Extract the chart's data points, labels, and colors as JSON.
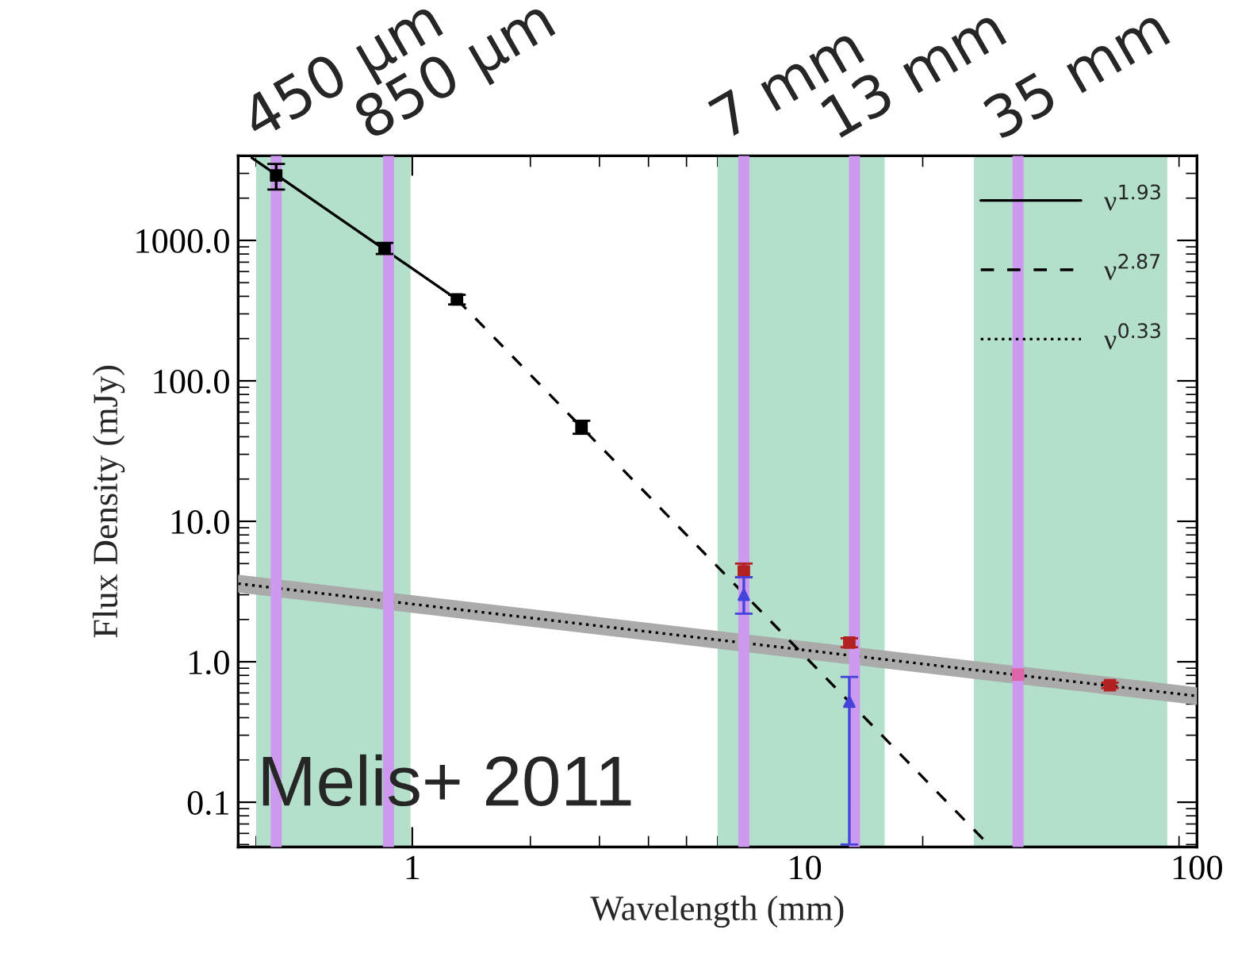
{
  "chart_data": {
    "type": "scatter",
    "xlabel": "Wavelength (mm)",
    "ylabel": "Flux Density (mJy)",
    "log": "xy",
    "xlim": [
      0.36,
      100
    ],
    "ylim": [
      0.048,
      4000
    ],
    "xticks": [
      1,
      10,
      100
    ],
    "yticks": [
      {
        "value": 0.1,
        "label": "0.1"
      },
      {
        "value": 1,
        "label": "1.0"
      },
      {
        "value": 10,
        "label": "10.0"
      },
      {
        "value": 100,
        "label": "100.0"
      },
      {
        "value": 1000,
        "label": "1000.0"
      }
    ],
    "grid": false,
    "legend": "top right",
    "bands": [
      {
        "axis": "x",
        "from": 0.4,
        "to": 0.99,
        "color": "#b3dfcb"
      },
      {
        "axis": "x",
        "from": 6.0,
        "to": 16,
        "color": "#b3dfcb"
      },
      {
        "axis": "x",
        "from": 27,
        "to": 84,
        "color": "#b3dfcb"
      }
    ],
    "ref_lines": [
      {
        "axis": "x",
        "value": 0.45,
        "label": "450 µm",
        "color": "#cc99ee"
      },
      {
        "axis": "x",
        "value": 0.87,
        "label": "850 µm",
        "color": "#cc99ee"
      },
      {
        "axis": "x",
        "value": 7,
        "label": "7 mm",
        "color": "#cc99ee"
      },
      {
        "axis": "x",
        "value": 13.4,
        "label": "13 mm",
        "color": "#cc99ee"
      },
      {
        "axis": "x",
        "value": 35,
        "label": "35 mm",
        "color": "#cc99ee"
      }
    ],
    "series": [
      {
        "type": "line",
        "name": "ν$^{1.93}$",
        "color": "#000000",
        "line_style": "solid",
        "x": [
          0.39,
          1.3
        ],
        "values": [
          3870,
          380
        ]
      },
      {
        "type": "line",
        "name": "ν$^{2.87}$",
        "color": "#000000",
        "line_style": "dashed",
        "x": [
          1.3,
          29
        ],
        "values": [
          380,
          0.052
        ]
      },
      {
        "type": "line",
        "color": "#aaaaaa",
        "line_style": "solid",
        "x": [
          0.36,
          100
        ],
        "values": [
          3.6,
          0.57
        ]
      },
      {
        "type": "line",
        "name": "ν$^{0.33}$",
        "color": "#000000",
        "line_style": "dotted",
        "x": [
          0.36,
          100
        ],
        "values": [
          3.6,
          0.57
        ]
      },
      {
        "color": "#000000",
        "marker": "square",
        "x": [
          0.45,
          0.85,
          1.3,
          2.7
        ],
        "values": [
          2900,
          880,
          380,
          47
        ],
        "errors": [
          [
            2300,
            3500
          ],
          80,
          30,
          5
        ]
      },
      {
        "color": "#b22222",
        "marker": "square",
        "x": [
          7,
          13,
          60
        ],
        "values": [
          4.4,
          1.37,
          0.68
        ],
        "errors": [
          [
            4.0,
            5.0
          ],
          0.1,
          0.03
        ]
      },
      {
        "color": "#4444dd",
        "marker": "triangle",
        "x": [
          7,
          13
        ],
        "values": [
          3.0,
          0.52
        ],
        "errors": [
          [
            2.2,
            4.0
          ],
          [
            0.05,
            0.78
          ]
        ]
      },
      {
        "color": "#dd66aa",
        "marker": "square",
        "x": [
          35
        ],
        "values": [
          0.81
        ]
      }
    ],
    "annotations": [
      "Melis+ 2011"
    ]
  }
}
